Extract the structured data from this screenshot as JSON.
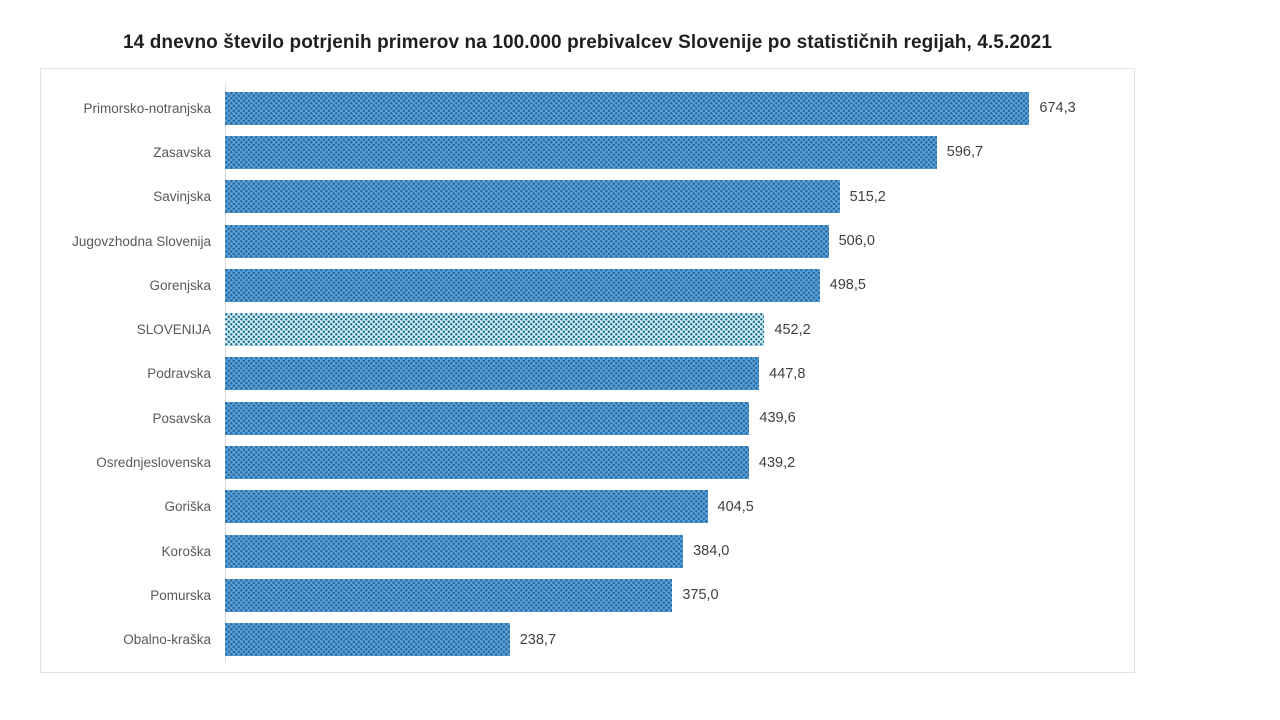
{
  "title": "14 dnevno število potrjenih primerov na 100.000 prebivalcev Slovenije po statističnih regijah, 4.5.2021",
  "colors": {
    "bar_fill": "#58a1d8",
    "bar_dot": "#29679f",
    "highlight_fill": "#d8eef6",
    "highlight_dot": "#19718f",
    "axis_line": "#d9d9d9",
    "frame_border": "#e4e4e4",
    "label_text": "#595959",
    "value_text": "#404040",
    "title_text": "#1f1f1f"
  },
  "chart_data": {
    "type": "bar",
    "orientation": "horizontal",
    "title": "14 dnevno število potrjenih primerov na 100.000 prebivalcev Slovenije po statističnih regijah, 4.5.2021",
    "xlabel": "",
    "ylabel": "",
    "xlim": [
      0,
      762
    ],
    "grid": false,
    "legend": false,
    "sort": "descending",
    "decimal_separator": ",",
    "highlighted_category": "SLOVENIJA",
    "categories": [
      "Primorsko-notranjska",
      "Zasavska",
      "Savinjska",
      "Jugovzhodna Slovenija",
      "Gorenjska",
      "SLOVENIJA",
      "Podravska",
      "Posavska",
      "Osrednjeslovenska",
      "Goriška",
      "Koroška",
      "Pomurska",
      "Obalno-kraška"
    ],
    "values": [
      674.3,
      596.7,
      515.2,
      506.0,
      498.5,
      452.2,
      447.8,
      439.6,
      439.2,
      404.5,
      384.0,
      375.0,
      238.7
    ],
    "value_labels": [
      "674,3",
      "596,7",
      "515,2",
      "506,0",
      "498,5",
      "452,2",
      "447,8",
      "439,6",
      "439,2",
      "404,5",
      "384,0",
      "375,0",
      "238,7"
    ]
  }
}
